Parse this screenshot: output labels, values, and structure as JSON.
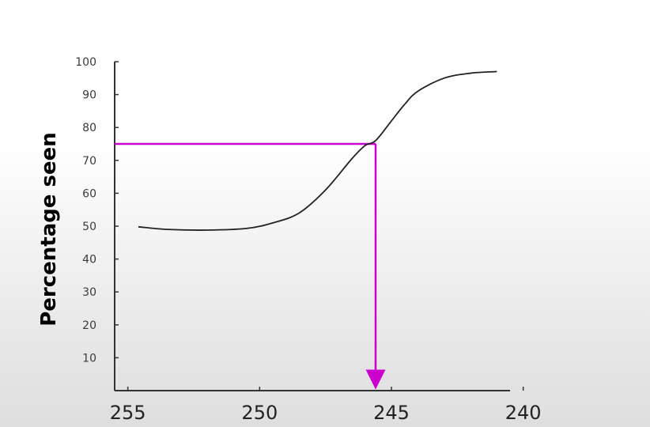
{
  "chart_data": {
    "type": "line",
    "ylabel": "Percentage seen",
    "xlabel": "",
    "xlim": [
      255.5,
      240.5
    ],
    "ylim": [
      0,
      100
    ],
    "x_reversed": true,
    "x_ticks": [
      255,
      250,
      245,
      240
    ],
    "y_ticks": [
      10,
      20,
      30,
      40,
      50,
      60,
      70,
      80,
      90,
      100
    ],
    "series": [
      {
        "color": "#222222",
        "x": [
          254.6,
          253.5,
          252,
          250.5,
          249.5,
          248.5,
          247.5,
          246.5,
          246,
          245.6,
          245,
          244.5,
          244,
          243,
          242,
          241
        ],
        "y": [
          49.8,
          49,
          48.8,
          49.3,
          51,
          54,
          61,
          70.5,
          74.5,
          76,
          82,
          87,
          91,
          95,
          96.5,
          97
        ]
      }
    ],
    "annotation": {
      "color": "#cc00cc",
      "y_level": 75,
      "x_at": 245.6
    }
  }
}
